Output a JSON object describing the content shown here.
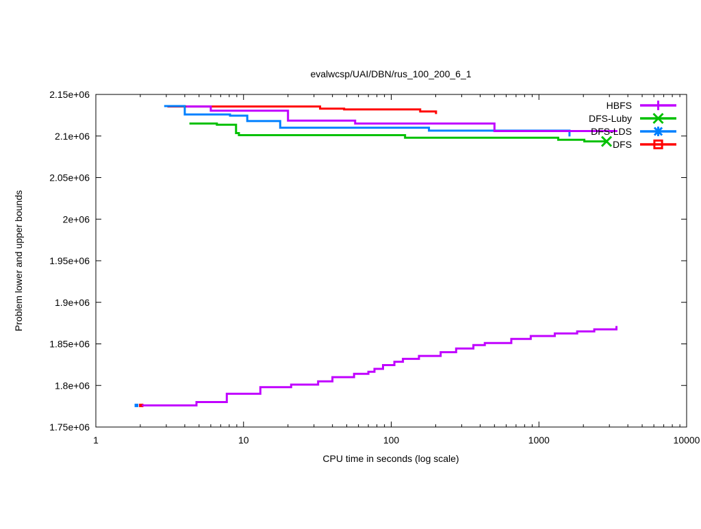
{
  "chart_data": {
    "type": "line",
    "title": "evalwcsp/UAI/DBN/rus_100_200_6_1",
    "xlabel": "CPU time in seconds (log scale)",
    "ylabel": "Problem lower and upper bounds",
    "x_scale": "log10",
    "xlim": [
      1,
      10000
    ],
    "ylim": [
      1750000,
      2150000
    ],
    "grid": false,
    "legend_position": "top-right-inside",
    "xticks": [
      {
        "t": 1,
        "label": "1"
      },
      {
        "t": 10,
        "label": "10"
      },
      {
        "t": 100,
        "label": "100"
      },
      {
        "t": 1000,
        "label": "1000"
      },
      {
        "t": 10000,
        "label": "10000"
      }
    ],
    "yticks": [
      {
        "v": 1750000,
        "label": "1.75e+06"
      },
      {
        "v": 1800000,
        "label": "1.8e+06"
      },
      {
        "v": 1850000,
        "label": "1.85e+06"
      },
      {
        "v": 1900000,
        "label": "1.9e+06"
      },
      {
        "v": 1950000,
        "label": "1.95e+06"
      },
      {
        "v": 2000000,
        "label": "2e+06"
      },
      {
        "v": 2050000,
        "label": "2.05e+06"
      },
      {
        "v": 2100000,
        "label": "2.1e+06"
      },
      {
        "v": 2150000,
        "label": "2.15e+06"
      }
    ],
    "colors": {
      "hbfs": "#c000ff",
      "dfs_luby": "#00c000",
      "dfs_lds": "#0080ff",
      "dfs": "#ff0000"
    },
    "legend": [
      {
        "label": "HBFS",
        "color": "hbfs",
        "marker": "plus"
      },
      {
        "label": "DFS-Luby",
        "color": "dfs_luby",
        "marker": "cross"
      },
      {
        "label": "DFS-LDS",
        "color": "dfs_lds",
        "marker": "asterisk"
      },
      {
        "label": "DFS",
        "color": "dfs",
        "marker": "square"
      }
    ],
    "series": [
      {
        "name": "DFS upper bound",
        "color": "dfs",
        "style": "steps",
        "width": 3,
        "points": [
          [
            3.05,
            2135500
          ],
          [
            33,
            2133000
          ],
          [
            48,
            2132000
          ],
          [
            157,
            2129500
          ],
          [
            201,
            2126500
          ]
        ]
      },
      {
        "name": "DFS initial lower bound",
        "color": "dfs",
        "style": "steps",
        "width": 5,
        "points": [
          [
            1.96,
            1776000
          ],
          [
            2.1,
            1776000
          ]
        ]
      },
      {
        "name": "DFS-LDS upper bound",
        "color": "dfs_lds",
        "style": "steps",
        "width": 3,
        "points": [
          [
            2.9,
            2136000
          ],
          [
            4.0,
            2126000
          ],
          [
            8.1,
            2124500
          ],
          [
            10.6,
            2118000
          ],
          [
            17.7,
            2110000
          ],
          [
            180,
            2106500
          ],
          [
            1610,
            2099500
          ]
        ]
      },
      {
        "name": "DFS-LDS initial lower bound",
        "color": "dfs_lds",
        "style": "steps",
        "width": 5,
        "points": [
          [
            1.83,
            1776000
          ],
          [
            1.94,
            1776000
          ]
        ]
      },
      {
        "name": "DFS-Luby upper bound",
        "color": "dfs_luby",
        "style": "steps",
        "width": 3,
        "end_marker": "cross",
        "points": [
          [
            4.3,
            2115000
          ],
          [
            6.6,
            2113500
          ],
          [
            8.9,
            2103500
          ],
          [
            9.3,
            2101000
          ],
          [
            124,
            2098000
          ],
          [
            1350,
            2095500
          ],
          [
            2030,
            2093500
          ],
          [
            2870,
            2093500
          ]
        ]
      },
      {
        "name": "HBFS lower bound",
        "color": "hbfs",
        "style": "steps",
        "width": 3,
        "points": [
          [
            2.05,
            1776000
          ],
          [
            4.8,
            1780000
          ],
          [
            7.7,
            1790000
          ],
          [
            13,
            1798000
          ],
          [
            21,
            1801000
          ],
          [
            32,
            1805000
          ],
          [
            40,
            1810000
          ],
          [
            56,
            1814000
          ],
          [
            70,
            1816500
          ],
          [
            77,
            1820000
          ],
          [
            88,
            1824500
          ],
          [
            105,
            1828500
          ],
          [
            120,
            1832000
          ],
          [
            154,
            1835500
          ],
          [
            216,
            1840000
          ],
          [
            275,
            1844500
          ],
          [
            360,
            1848500
          ],
          [
            430,
            1851000
          ],
          [
            650,
            1856000
          ],
          [
            880,
            1859500
          ],
          [
            1280,
            1862500
          ],
          [
            1815,
            1865000
          ],
          [
            2370,
            1867500
          ],
          [
            3350,
            1871500
          ]
        ]
      },
      {
        "name": "HBFS upper bound",
        "color": "hbfs",
        "style": "steps",
        "width": 3,
        "points": [
          [
            4.1,
            2135500
          ],
          [
            6.0,
            2130500
          ],
          [
            20,
            2118500
          ],
          [
            57,
            2115000
          ],
          [
            500,
            2106000
          ],
          [
            3400,
            2106000
          ]
        ]
      }
    ]
  }
}
